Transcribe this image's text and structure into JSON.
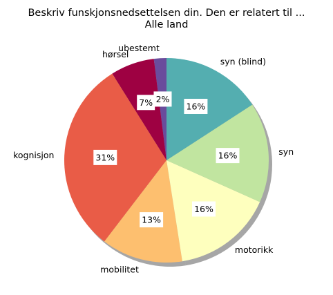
{
  "chart_data": {
    "type": "pie",
    "title": "Beskriv funskjonsnedsettelsen din. Den er relatert til ...",
    "subtitle": "Alle land",
    "start_angle_deg": 90,
    "direction": "counterclockwise",
    "shadow": true,
    "slices": [
      {
        "label": "ubestemt",
        "value": 2,
        "pct_label": "2%",
        "color": "#6a4c9c"
      },
      {
        "label": "hørsel",
        "value": 7,
        "pct_label": "7%",
        "color": "#9e0142"
      },
      {
        "label": "kognisjon",
        "value": 31,
        "pct_label": "31%",
        "color": "#e95c47"
      },
      {
        "label": "mobilitet",
        "value": 13,
        "pct_label": "13%",
        "color": "#fdbf6f"
      },
      {
        "label": "motorikk",
        "value": 16,
        "pct_label": "16%",
        "color": "#feffbe"
      },
      {
        "label": "syn",
        "value": 16,
        "pct_label": "16%",
        "color": "#c1e5a0"
      },
      {
        "label": "syn (blind)",
        "value": 16,
        "pct_label": "16%",
        "color": "#54aeb0"
      }
    ]
  }
}
